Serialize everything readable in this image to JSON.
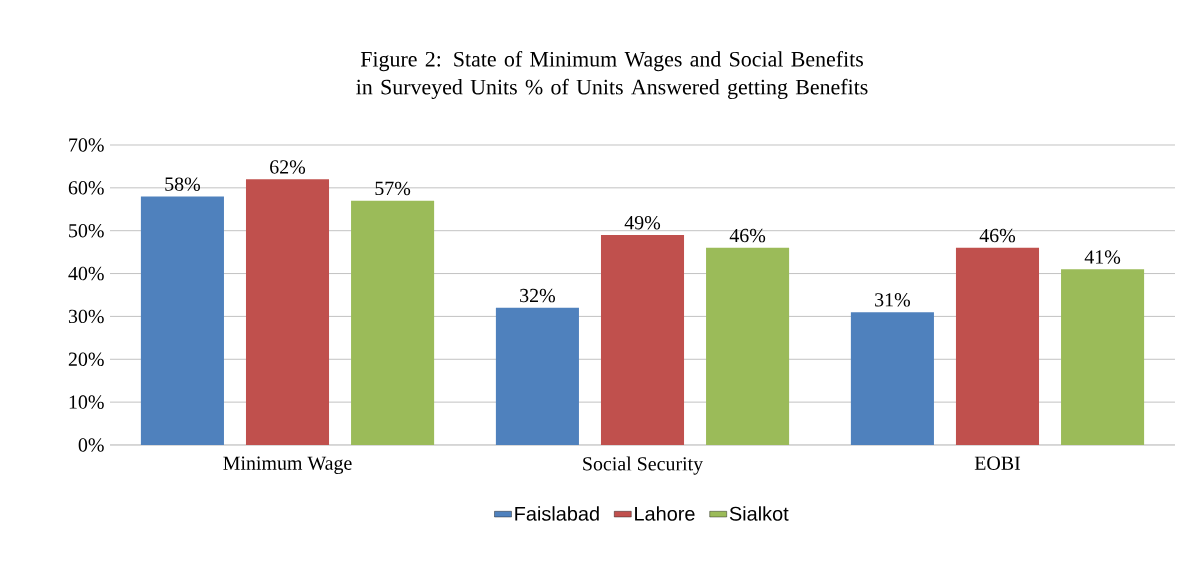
{
  "chart_data": {
    "type": "bar",
    "title": "Figure 2: State of Minimum Wages and Social Benefits in Surveyed Units % of Units Answered getting Benefits",
    "categories": [
      "Minimum Wage",
      "Social Security",
      "EOBI"
    ],
    "series": [
      {
        "name": "Faislabad",
        "color": "#4f81bd",
        "values": [
          58,
          32,
          31
        ],
        "value_labels": [
          "58%",
          "32%",
          "31%"
        ]
      },
      {
        "name": "Lahore",
        "color": "#c0504d",
        "values": [
          62,
          49,
          46
        ],
        "value_labels": [
          "62%",
          "49%",
          "46%"
        ]
      },
      {
        "name": "Sialkot",
        "color": "#9bbb59",
        "values": [
          57,
          46,
          41
        ],
        "value_labels": [
          "57%",
          "46%",
          "41%"
        ]
      }
    ],
    "ylim": [
      0,
      70
    ],
    "yticks": [
      {
        "value": 0,
        "label": "0%"
      },
      {
        "value": 10,
        "label": "10%"
      },
      {
        "value": 20,
        "label": "20%"
      },
      {
        "value": 30,
        "label": "30%"
      },
      {
        "value": 40,
        "label": "40%"
      },
      {
        "value": 50,
        "label": "50%"
      },
      {
        "value": 60,
        "label": "60%"
      },
      {
        "value": 70,
        "label": "70%"
      }
    ],
    "grid": "y",
    "legend": "bottom"
  }
}
